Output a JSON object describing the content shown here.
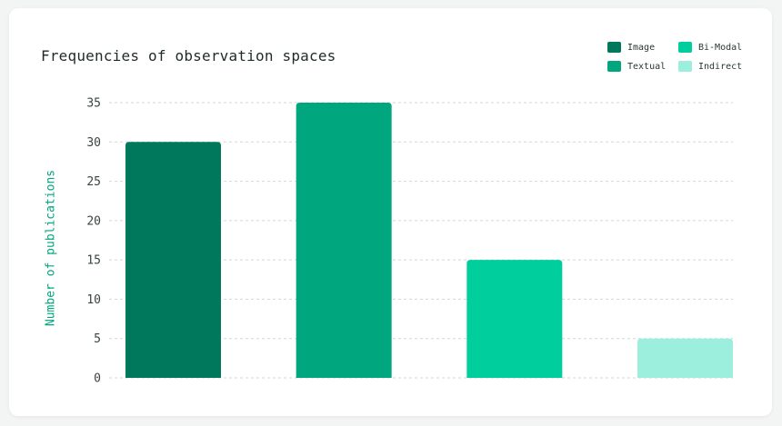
{
  "chart_data": {
    "type": "bar",
    "title": "Frequencies of observation spaces",
    "xlabel": "",
    "ylabel": "Number of publications",
    "categories": [
      "Image",
      "Textual",
      "Bi-Modal",
      "Indirect"
    ],
    "values": [
      30,
      35,
      15,
      5
    ],
    "colors": [
      "#00785c",
      "#00a67e",
      "#00cf9d",
      "#9ceedd"
    ],
    "ylim": [
      0,
      35
    ],
    "yticks": [
      0,
      5,
      10,
      15,
      20,
      25,
      30,
      35
    ],
    "grid": true,
    "legend_position": "top-right"
  }
}
